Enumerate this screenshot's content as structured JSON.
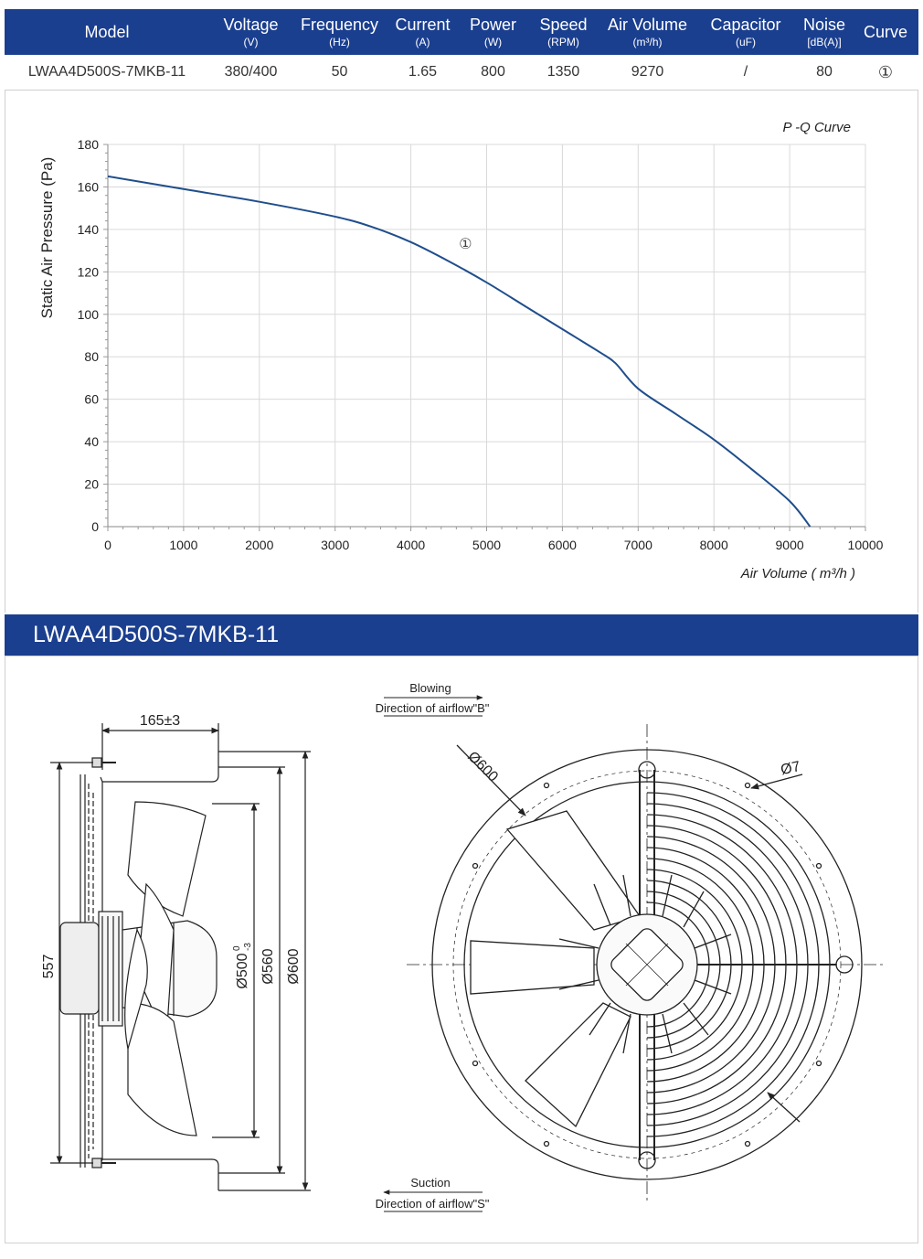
{
  "spec_table": {
    "headers": [
      {
        "label": "Model",
        "unit": ""
      },
      {
        "label": "Voltage",
        "unit": "(V)"
      },
      {
        "label": "Frequency",
        "unit": "(Hz)"
      },
      {
        "label": "Current",
        "unit": "(A)"
      },
      {
        "label": "Power",
        "unit": "(W)"
      },
      {
        "label": "Speed",
        "unit": "(RPM)"
      },
      {
        "label": "Air Volume",
        "unit": "(m³/h)"
      },
      {
        "label": "Capacitor",
        "unit": "(uF)"
      },
      {
        "label": "Noise",
        "unit": "[dB(A)]"
      },
      {
        "label": "Curve",
        "unit": ""
      }
    ],
    "row": [
      "LWAA4D500S-7MKB-11",
      "380/400",
      "50",
      "1.65",
      "800",
      "1350",
      "9270",
      "/",
      "80",
      "①"
    ]
  },
  "chart_data": {
    "type": "line",
    "title": "P -Q Curve",
    "xlabel": "Air Volume ( m³/h )",
    "ylabel": "Static Air Pressure  (Pa)",
    "xlim": [
      0,
      10000
    ],
    "ylim": [
      0,
      180
    ],
    "x_ticks": [
      "0",
      "1000",
      "2000",
      "3000",
      "4000",
      "5000",
      "6000",
      "7000",
      "8000",
      "9000",
      "10000"
    ],
    "y_ticks": [
      "0",
      "20",
      "40",
      "60",
      "80",
      "100",
      "120",
      "140",
      "160",
      "180"
    ],
    "grid": true,
    "series": [
      {
        "name": "①",
        "color": "#1f4e8c",
        "x": [
          0,
          1000,
          2000,
          3000,
          3500,
          4000,
          4500,
          5000,
          5500,
          6000,
          6500,
          6700,
          7000,
          7500,
          8000,
          8500,
          9000,
          9270
        ],
        "y": [
          165,
          159,
          153,
          146,
          141,
          134,
          125,
          115,
          104,
          93,
          82,
          77,
          65,
          53,
          41,
          27,
          12,
          0
        ]
      }
    ],
    "annotations": [
      {
        "text": "①",
        "x": 4720,
        "y": 131
      }
    ]
  },
  "model_banner": "LWAA4D500S-7MKB-11",
  "drawing": {
    "side_view": {
      "depth": "165±3",
      "mounting": "557",
      "dia_inner": "Ø500",
      "tol_upper": "0",
      "tol_lower": "-3",
      "dia_mid": "Ø560",
      "dia_outer": "Ø600"
    },
    "front_view": {
      "blowing": "Blowing",
      "blowing_dir": "Direction of airflow\"B\"",
      "suction": "Suction",
      "suction_dir": "Direction of airflow\"S\"",
      "dia_outer": "Ø600",
      "hole": "Ø7"
    }
  }
}
